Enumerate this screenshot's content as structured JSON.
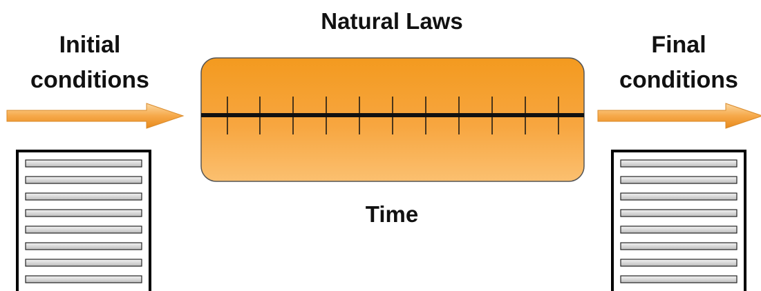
{
  "title": "Natural Laws",
  "input_label": "Initial conditions",
  "output_label": "Final conditions",
  "axis_label": "Time"
}
